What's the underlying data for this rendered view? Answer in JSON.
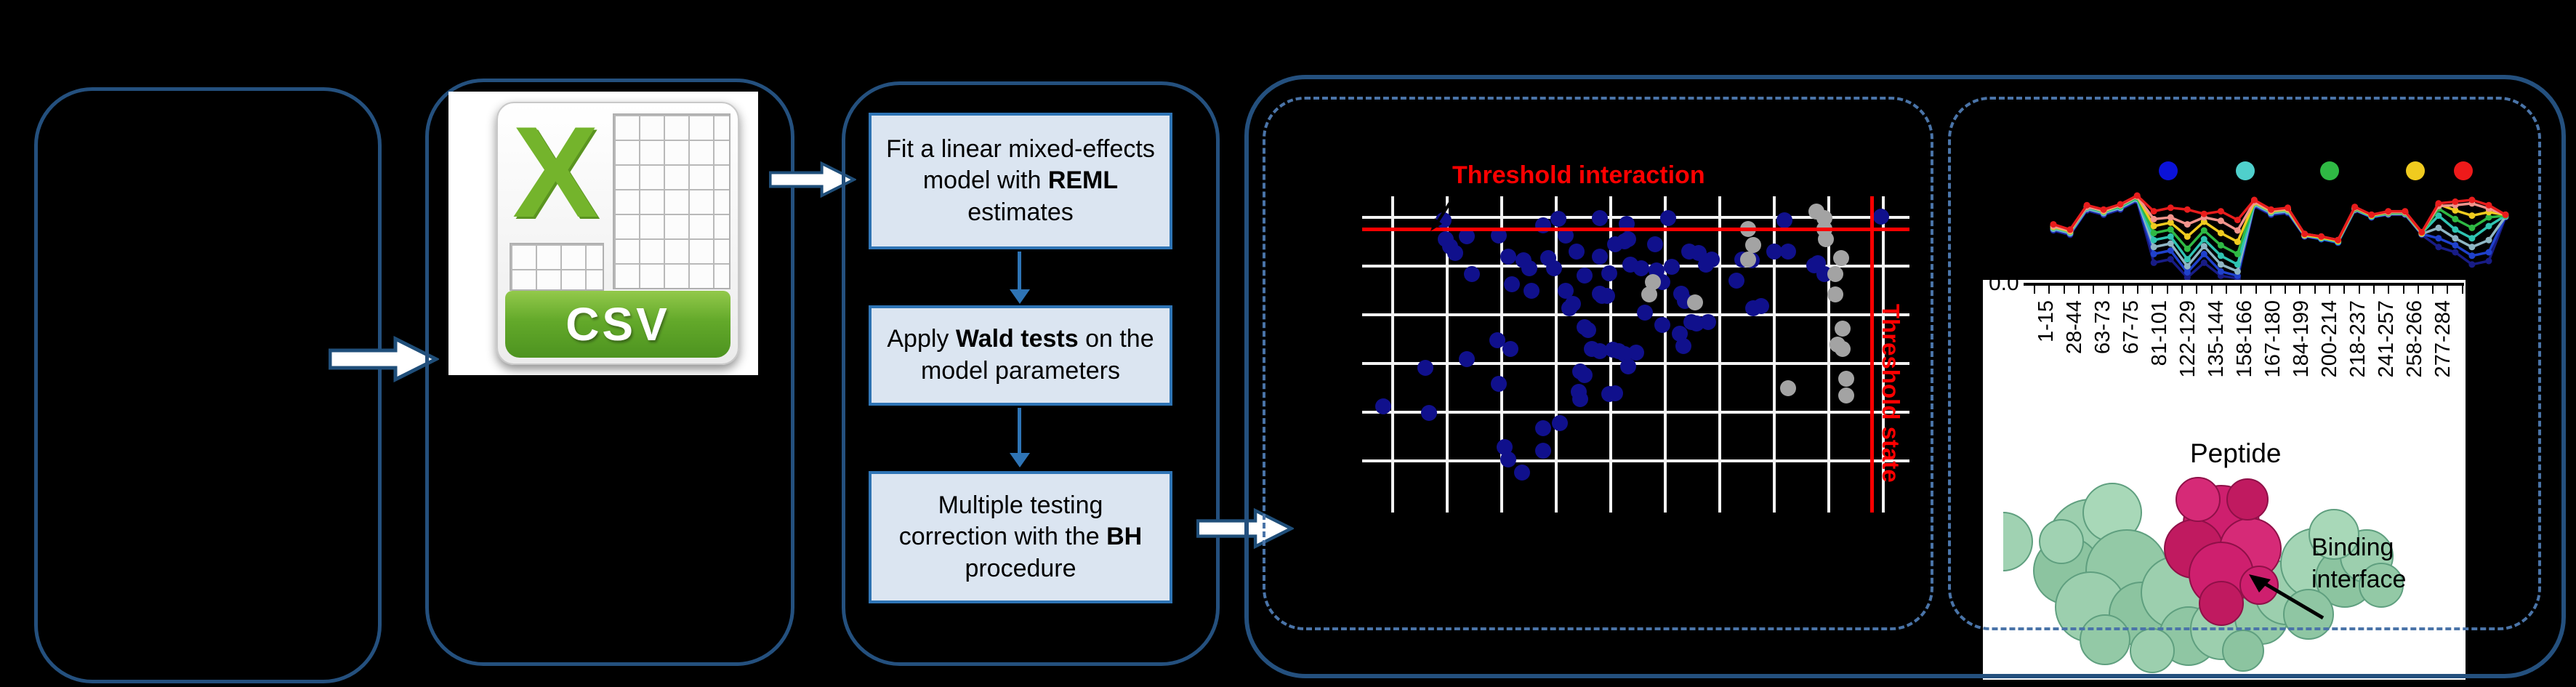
{
  "colors": {
    "panel_border": "#24507e",
    "dashed_border": "#4a74a8",
    "flow_fill": "#dbe5f1",
    "flow_border": "#2e74b5",
    "threshold_red": "#ff0000",
    "scatter_blue": "#10108c",
    "scatter_gray": "#a3a3a3",
    "csv_green": "#74b42c"
  },
  "csv": {
    "x_letter": "X",
    "banner": "CSV"
  },
  "flow": {
    "boxes": [
      {
        "t1": "Fit a linear mixed-effects model with ",
        "b": "REML",
        "t2": " estimates"
      },
      {
        "t1": "Apply ",
        "b": "Wald tests",
        "t2": " on the model parameters"
      },
      {
        "t1": "Multiple testing correction with the ",
        "b": "BH",
        "t2": " procedure"
      }
    ]
  },
  "scatter_labels": {
    "horizontal": "Threshold interaction",
    "vertical": "Threshold state"
  },
  "peptide_axis": {
    "zero_tick": "0.0",
    "title": "Peptide",
    "labels": [
      "1-15",
      "28-44",
      "63-73",
      "67-75",
      "81-101",
      "122-129",
      "135-144",
      "158-166",
      "167-180",
      "184-199",
      "200-214",
      "218-237",
      "241-257",
      "258-266",
      "277-284"
    ]
  },
  "binding": {
    "line1": "Binding",
    "line2": "interface"
  },
  "chart_data": [
    {
      "type": "scatter",
      "title": "Threshold interaction",
      "x_threshold_label": "Threshold state",
      "grid": true,
      "red_hline_pct": 10.4,
      "red_vline_pct": 93.1,
      "point_colors": {
        "significant": "#10108c",
        "nonsignificant": "#a3a3a3"
      },
      "blue_points_pct": [
        [
          14.9,
          7.6
        ],
        [
          35.8,
          7.2
        ],
        [
          43.4,
          6.8
        ],
        [
          55.9,
          6.8
        ],
        [
          77.1,
          7.6
        ],
        [
          94.8,
          6.4
        ],
        [
          33,
          9.2
        ],
        [
          48.3,
          8.8
        ],
        [
          48.6,
          13.5
        ],
        [
          53.5,
          15.1
        ],
        [
          15.3,
          13.5
        ],
        [
          16,
          15.9
        ],
        [
          17,
          17.9
        ],
        [
          19.1,
          12.7
        ],
        [
          25,
          12.4
        ],
        [
          20.1,
          24.7
        ],
        [
          26.7,
          19.1
        ],
        [
          29.5,
          20.3
        ],
        [
          30.6,
          22.7
        ],
        [
          34,
          19.5
        ],
        [
          35.1,
          22.7
        ],
        [
          37.2,
          12.4
        ],
        [
          39.2,
          17.5
        ],
        [
          40.6,
          25.1
        ],
        [
          43.4,
          19.1
        ],
        [
          43.8,
          31.5
        ],
        [
          45.1,
          24.3
        ],
        [
          46.2,
          15.1
        ],
        [
          47.9,
          14.3
        ],
        [
          49,
          21.5
        ],
        [
          51,
          22.7
        ],
        [
          51.7,
          36.7
        ],
        [
          53.8,
          23.5
        ],
        [
          54.9,
          27.1
        ],
        [
          56.6,
          22.3
        ],
        [
          59.7,
          17.5
        ],
        [
          61.5,
          17.9
        ],
        [
          62.8,
          21.5
        ],
        [
          63.9,
          19.9
        ],
        [
          68.4,
          26.7
        ],
        [
          69.4,
          19.9
        ],
        [
          71.2,
          20.3
        ],
        [
          71.5,
          35.5
        ],
        [
          72.9,
          34.7
        ],
        [
          75.3,
          17.5
        ],
        [
          77.8,
          17.5
        ],
        [
          82.6,
          21.9
        ],
        [
          83.3,
          21.1
        ],
        [
          84.4,
          24.7
        ],
        [
          27.4,
          27.9
        ],
        [
          30.9,
          29.9
        ],
        [
          37.2,
          29.9
        ],
        [
          37.8,
          35.5
        ],
        [
          38.5,
          33.9
        ],
        [
          40.6,
          41.4
        ],
        [
          41.3,
          42.2
        ],
        [
          43.4,
          30.7
        ],
        [
          44.8,
          31.5
        ],
        [
          42,
          48.2
        ],
        [
          43.4,
          49
        ],
        [
          45.8,
          48.6
        ],
        [
          46.9,
          49
        ],
        [
          47.9,
          49.8
        ],
        [
          50,
          49.4
        ],
        [
          48.6,
          53.8
        ],
        [
          39.9,
          55.4
        ],
        [
          40.6,
          56.6
        ],
        [
          39.6,
          61.8
        ],
        [
          39.9,
          64.1
        ],
        [
          45.1,
          62.5
        ],
        [
          46.2,
          62.2
        ],
        [
          24.7,
          45.4
        ],
        [
          27.1,
          48.2
        ],
        [
          19.1,
          51.4
        ],
        [
          11.5,
          54.2
        ],
        [
          25,
          59.4
        ],
        [
          3.8,
          66.5
        ],
        [
          12.2,
          68.5
        ],
        [
          33,
          73.3
        ],
        [
          36.1,
          71.7
        ],
        [
          26,
          79.3
        ],
        [
          33,
          80.5
        ],
        [
          26.7,
          83.3
        ],
        [
          29.2,
          87.3
        ],
        [
          54.9,
          40.6
        ],
        [
          58,
          43.4
        ],
        [
          58.7,
          47.4
        ],
        [
          60.1,
          39.8
        ],
        [
          61.1,
          40.2
        ],
        [
          63.2,
          39.8
        ],
        [
          58.3,
          30.7
        ],
        [
          59,
          33.1
        ]
      ],
      "gray_points_pct": [
        [
          83,
          4.8
        ],
        [
          84.4,
          6.8
        ],
        [
          84.4,
          10.4
        ],
        [
          84.7,
          13.5
        ],
        [
          70.5,
          10.4
        ],
        [
          71.5,
          15.5
        ],
        [
          53.1,
          27.1
        ],
        [
          52.4,
          31.1
        ],
        [
          60.8,
          33.5
        ],
        [
          87.5,
          19.5
        ],
        [
          86.5,
          24.7
        ],
        [
          86.5,
          31.1
        ],
        [
          87.8,
          41.8
        ],
        [
          86.8,
          47
        ],
        [
          87.8,
          48.2
        ],
        [
          88.5,
          57.8
        ],
        [
          88.5,
          63
        ],
        [
          77.8,
          60.6
        ],
        [
          70.5,
          19.9
        ]
      ]
    },
    {
      "type": "line",
      "xlabel": "Peptide",
      "x_categories": [
        "1-15",
        "28-44",
        "63-73",
        "67-75",
        "81-101",
        "122-129",
        "135-144",
        "158-166",
        "167-180",
        "184-199",
        "200-214",
        "218-237",
        "241-257",
        "258-266",
        "277-284"
      ],
      "y_origin_tick": "0.0",
      "legend_dot_colors": [
        "#0b12d8",
        "#4fd0cc",
        "#2fb944",
        "#f0cb1f",
        "#ee1a1a"
      ],
      "series": [
        {
          "name": "navy",
          "color": "#181c86",
          "values": [
            45,
            50,
            22,
            27,
            21,
            11,
            82,
            78,
            99,
            82,
            97,
            100,
            17,
            27,
            25,
            52,
            55,
            59,
            22,
            30,
            27,
            27,
            50,
            64,
            70,
            84,
            80,
            30
          ]
        },
        {
          "name": "blue",
          "color": "#1f41cc",
          "values": [
            44,
            49,
            21,
            26,
            20,
            10,
            72,
            68,
            93,
            72,
            92,
            97,
            16,
            26,
            24,
            51,
            55,
            59,
            21,
            30,
            26,
            26,
            49,
            54,
            62,
            74,
            70,
            29
          ]
        },
        {
          "name": "cadet",
          "color": "#8fb6c4",
          "values": [
            43,
            48,
            20,
            25,
            19,
            9,
            64,
            60,
            86,
            63,
            84,
            92,
            15,
            25,
            23,
            51,
            54,
            58,
            21,
            29,
            26,
            26,
            49,
            42,
            54,
            64,
            56,
            29
          ]
        },
        {
          "name": "teal",
          "color": "#2fc4b2",
          "values": [
            42,
            47,
            19,
            24,
            18,
            8,
            56,
            52,
            78,
            55,
            74,
            84,
            14,
            24,
            22,
            50,
            54,
            58,
            20,
            29,
            25,
            25,
            48,
            28,
            44,
            54,
            40,
            28
          ]
        },
        {
          "name": "green",
          "color": "#2fb944",
          "values": [
            41,
            46,
            18,
            23,
            17,
            7,
            48,
            44,
            66,
            45,
            62,
            72,
            13,
            23,
            21,
            50,
            53,
            57,
            20,
            28,
            25,
            25,
            48,
            20,
            32,
            42,
            30,
            28
          ]
        },
        {
          "name": "yellow",
          "color": "#f0cb1f",
          "values": [
            41,
            46,
            17,
            23,
            16,
            6,
            40,
            36,
            52,
            35,
            48,
            58,
            13,
            23,
            21,
            50,
            53,
            57,
            19,
            28,
            24,
            24,
            48,
            15,
            22,
            28,
            24,
            27
          ]
        },
        {
          "name": "salmon",
          "color": "#f2948c",
          "values": [
            40,
            45,
            18,
            22,
            16,
            6,
            32,
            30,
            38,
            30,
            34,
            45,
            12,
            22,
            20,
            49,
            52,
            56,
            19,
            27,
            24,
            24,
            47,
            17,
            16,
            14,
            20,
            27
          ]
        },
        {
          "name": "red",
          "color": "#e81c1c",
          "values": [
            38,
            44,
            16,
            21,
            15,
            5,
            23,
            19,
            21,
            26,
            23,
            33,
            10,
            21,
            19,
            49,
            52,
            56,
            18,
            27,
            23,
            23,
            47,
            14,
            12,
            10,
            16,
            27
          ]
        }
      ]
    }
  ]
}
